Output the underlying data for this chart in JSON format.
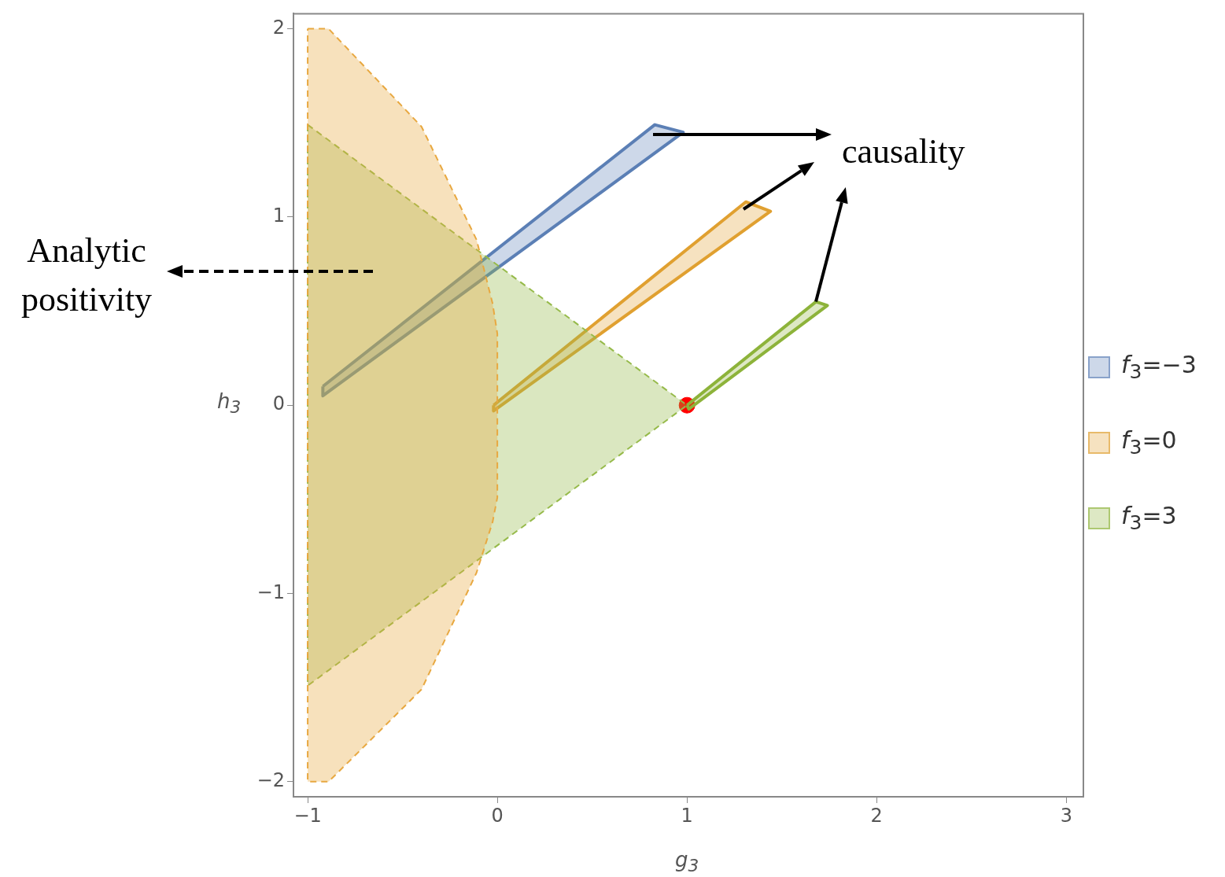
{
  "chart_data": {
    "type": "area",
    "xlabel": "g$_{3}$",
    "ylabel": "h$_{3}$",
    "xlim": [
      -1.075,
      3.09
    ],
    "ylim": [
      -2.08,
      2.08
    ],
    "xticks": [
      -1,
      0,
      1,
      2,
      3
    ],
    "yticks": [
      -2,
      -1,
      0,
      1,
      2
    ],
    "grid": false,
    "legend": "right",
    "series": [
      {
        "color": "#e8a840",
        "line_style": "dashed",
        "x": [
          -1,
          -0.89,
          -0.4,
          -0.11,
          -0.025,
          0,
          0,
          -0.025,
          -0.11,
          -0.4,
          -0.89,
          -1,
          -1
        ],
        "values": [
          2,
          2,
          1.48,
          0.88,
          0.54,
          0.38,
          -0.49,
          -0.62,
          -0.89,
          -1.51,
          -2,
          -2,
          2
        ]
      },
      {
        "color": "#96ba4a",
        "line_style": "dashed",
        "x": [
          -1,
          1,
          -1,
          -1
        ],
        "values": [
          1.49,
          0,
          -1.49,
          1.49
        ]
      },
      {
        "name": "f$_{3}$=−3",
        "color": "#5b7fb5",
        "line_style": "solid",
        "x": [
          -0.92,
          0.83,
          0.98,
          -0.92,
          -0.92
        ],
        "values": [
          0.1,
          1.49,
          1.45,
          0.05,
          0.1
        ]
      },
      {
        "name": "f$_{3}$=0",
        "color": "#e0a030",
        "line_style": "solid",
        "x": [
          -0.02,
          1.31,
          1.44,
          -0.02,
          -0.02
        ],
        "values": [
          0.0,
          1.08,
          1.03,
          -0.03,
          0.0
        ]
      },
      {
        "name": "f$_{3}$=3",
        "color": "#8db33a",
        "line_style": "solid",
        "x": [
          1,
          1.68,
          1.74,
          1.01,
          1
        ],
        "values": [
          0,
          0.55,
          0.53,
          -0.02,
          0
        ]
      },
      {
        "type": "scatter",
        "color": "#ff0000",
        "x": [
          1
        ],
        "values": [
          0
        ]
      }
    ],
    "annotations": [
      "Analytic positivity",
      {
        "text": "causality",
        "x": 1.68,
        "y": 0.55
      }
    ]
  }
}
